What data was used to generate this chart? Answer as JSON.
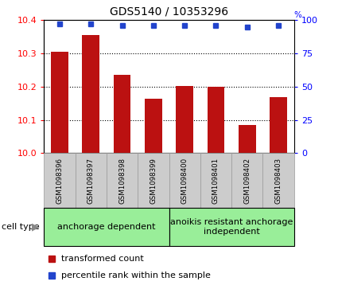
{
  "title": "GDS5140 / 10353296",
  "samples": [
    "GSM1098396",
    "GSM1098397",
    "GSM1098398",
    "GSM1098399",
    "GSM1098400",
    "GSM1098401",
    "GSM1098402",
    "GSM1098403"
  ],
  "bar_values": [
    10.305,
    10.355,
    10.235,
    10.165,
    10.203,
    10.2,
    10.085,
    10.168
  ],
  "percentile_values": [
    97,
    97,
    96,
    96,
    96,
    96,
    95,
    96
  ],
  "ylim_left": [
    10.0,
    10.4
  ],
  "ylim_right": [
    0,
    100
  ],
  "yticks_left": [
    10.0,
    10.1,
    10.2,
    10.3,
    10.4
  ],
  "yticks_right": [
    0,
    25,
    50,
    75,
    100
  ],
  "bar_color": "#bb1111",
  "dot_color": "#2244cc",
  "bar_width": 0.55,
  "group1_label": "anchorage dependent",
  "group2_label": "anoikis resistant anchorage\nindependent",
  "group_color": "#99ee99",
  "cell_type_label": "cell type",
  "legend_red_label": "transformed count",
  "legend_blue_label": "percentile rank within the sample",
  "sample_box_color": "#cccccc",
  "sample_box_edge": "#999999",
  "title_fontsize": 10,
  "bar_label_fontsize": 6.5,
  "group_fontsize": 8,
  "legend_fontsize": 8
}
